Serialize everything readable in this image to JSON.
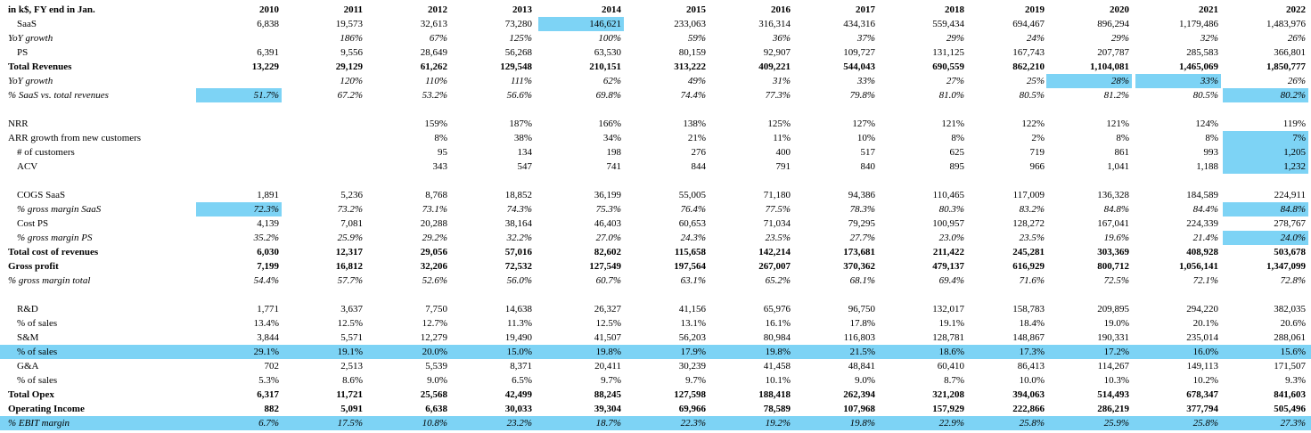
{
  "highlight_color": "#7dd3f5",
  "header": {
    "label": "in k$, FY end in Jan.",
    "years": [
      "2010",
      "2011",
      "2012",
      "2013",
      "2014",
      "2015",
      "2016",
      "2017",
      "2018",
      "2019",
      "2020",
      "2021",
      "2022"
    ]
  },
  "rows": [
    {
      "id": "saas",
      "label": "SaaS",
      "indent": 1,
      "style": "normal",
      "values": [
        "6,838",
        "19,573",
        "32,613",
        "73,280",
        "146,621",
        "233,063",
        "316,314",
        "434,316",
        "559,434",
        "694,467",
        "896,294",
        "1,179,486",
        "1,483,976"
      ],
      "highlight": [
        4
      ]
    },
    {
      "id": "saas-yoy",
      "label": "YoY growth",
      "indent": 0,
      "style": "italic",
      "values": [
        "",
        "186%",
        "67%",
        "125%",
        "100%",
        "59%",
        "36%",
        "37%",
        "29%",
        "24%",
        "29%",
        "32%",
        "26%"
      ]
    },
    {
      "id": "ps",
      "label": "PS",
      "indent": 1,
      "style": "normal",
      "values": [
        "6,391",
        "9,556",
        "28,649",
        "56,268",
        "63,530",
        "80,159",
        "92,907",
        "109,727",
        "131,125",
        "167,743",
        "207,787",
        "285,583",
        "366,801"
      ]
    },
    {
      "id": "total-revenues",
      "label": "Total Revenues",
      "indent": 0,
      "style": "bold",
      "values": [
        "13,229",
        "29,129",
        "61,262",
        "129,548",
        "210,151",
        "313,222",
        "409,221",
        "544,043",
        "690,559",
        "862,210",
        "1,104,081",
        "1,465,069",
        "1,850,777"
      ]
    },
    {
      "id": "total-yoy",
      "label": "YoY growth",
      "indent": 0,
      "style": "italic",
      "values": [
        "",
        "120%",
        "110%",
        "111%",
        "62%",
        "49%",
        "31%",
        "33%",
        "27%",
        "25%",
        "28%",
        "33%",
        "26%"
      ],
      "highlight": [
        10,
        11
      ]
    },
    {
      "id": "saas-share",
      "label": "% SaaS vs. total revenues",
      "indent": 0,
      "style": "italic",
      "values": [
        "51.7%",
        "67.2%",
        "53.2%",
        "56.6%",
        "69.8%",
        "74.4%",
        "77.3%",
        "79.8%",
        "81.0%",
        "80.5%",
        "81.2%",
        "80.5%",
        "80.2%"
      ],
      "highlight": [
        0,
        12
      ]
    },
    {
      "id": "gap-1",
      "label": "",
      "indent": 0,
      "style": "normal",
      "values": [
        "",
        "",
        "",
        "",
        "",
        "",
        "",
        "",
        "",
        "",
        "",
        "",
        ""
      ]
    },
    {
      "id": "nrr",
      "label": "NRR",
      "indent": 0,
      "style": "normal",
      "values": [
        "",
        "",
        "159%",
        "187%",
        "166%",
        "138%",
        "125%",
        "127%",
        "121%",
        "122%",
        "121%",
        "124%",
        "119%"
      ]
    },
    {
      "id": "arr-growth",
      "label": "ARR growth from new customers",
      "indent": 0,
      "style": "normal",
      "values": [
        "",
        "",
        "8%",
        "38%",
        "34%",
        "21%",
        "11%",
        "10%",
        "8%",
        "2%",
        "8%",
        "8%",
        "7%"
      ],
      "highlight": [
        12
      ]
    },
    {
      "id": "customers",
      "label": "# of customers",
      "indent": 1,
      "style": "normal",
      "values": [
        "",
        "",
        "95",
        "134",
        "198",
        "276",
        "400",
        "517",
        "625",
        "719",
        "861",
        "993",
        "1,205"
      ],
      "highlight": [
        12
      ]
    },
    {
      "id": "acv",
      "label": "ACV",
      "indent": 1,
      "style": "normal",
      "values": [
        "",
        "",
        "343",
        "547",
        "741",
        "844",
        "791",
        "840",
        "895",
        "966",
        "1,041",
        "1,188",
        "1,232"
      ],
      "highlight": [
        12
      ]
    },
    {
      "id": "gap-2",
      "label": "",
      "indent": 0,
      "style": "normal",
      "values": [
        "",
        "",
        "",
        "",
        "",
        "",
        "",
        "",
        "",
        "",
        "",
        "",
        ""
      ]
    },
    {
      "id": "cogs-saas",
      "label": "COGS SaaS",
      "indent": 2,
      "style": "normal",
      "values": [
        "1,891",
        "5,236",
        "8,768",
        "18,852",
        "36,199",
        "55,005",
        "71,180",
        "94,386",
        "110,465",
        "117,009",
        "136,328",
        "184,589",
        "224,911"
      ]
    },
    {
      "id": "gm-saas",
      "label": "% gross margin SaaS",
      "indent": 2,
      "style": "italic",
      "values": [
        "72.3%",
        "73.2%",
        "73.1%",
        "74.3%",
        "75.3%",
        "76.4%",
        "77.5%",
        "78.3%",
        "80.3%",
        "83.2%",
        "84.8%",
        "84.4%",
        "84.8%"
      ],
      "highlight": [
        0,
        12
      ]
    },
    {
      "id": "cost-ps",
      "label": "Cost PS",
      "indent": 2,
      "style": "normal",
      "values": [
        "4,139",
        "7,081",
        "20,288",
        "38,164",
        "46,403",
        "60,653",
        "71,034",
        "79,295",
        "100,957",
        "128,272",
        "167,041",
        "224,339",
        "278,767"
      ]
    },
    {
      "id": "gm-ps",
      "label": "% gross margin PS",
      "indent": 2,
      "style": "italic",
      "values": [
        "35.2%",
        "25.9%",
        "29.2%",
        "32.2%",
        "27.0%",
        "24.3%",
        "23.5%",
        "27.7%",
        "23.0%",
        "23.5%",
        "19.6%",
        "21.4%",
        "24.0%"
      ],
      "highlight": [
        12
      ]
    },
    {
      "id": "total-cost",
      "label": "Total cost of revenues",
      "indent": 0,
      "style": "bold",
      "values": [
        "6,030",
        "12,317",
        "29,056",
        "57,016",
        "82,602",
        "115,658",
        "142,214",
        "173,681",
        "211,422",
        "245,281",
        "303,369",
        "408,928",
        "503,678"
      ]
    },
    {
      "id": "gross-profit",
      "label": "Gross profit",
      "indent": 0,
      "style": "bold",
      "values": [
        "7,199",
        "16,812",
        "32,206",
        "72,532",
        "127,549",
        "197,564",
        "267,007",
        "370,362",
        "479,137",
        "616,929",
        "800,712",
        "1,056,141",
        "1,347,099"
      ]
    },
    {
      "id": "gm-total",
      "label": "% gross margin total",
      "indent": 0,
      "style": "italic",
      "values": [
        "54.4%",
        "57.7%",
        "52.6%",
        "56.0%",
        "60.7%",
        "63.1%",
        "65.2%",
        "68.1%",
        "69.4%",
        "71.6%",
        "72.5%",
        "72.1%",
        "72.8%"
      ]
    },
    {
      "id": "gap-3",
      "label": "",
      "indent": 0,
      "style": "normal",
      "values": [
        "",
        "",
        "",
        "",
        "",
        "",
        "",
        "",
        "",
        "",
        "",
        "",
        ""
      ]
    },
    {
      "id": "rnd",
      "label": "R&D",
      "indent": 2,
      "style": "normal",
      "values": [
        "1,771",
        "3,637",
        "7,750",
        "14,638",
        "26,327",
        "41,156",
        "65,976",
        "96,750",
        "132,017",
        "158,783",
        "209,895",
        "294,220",
        "382,035"
      ]
    },
    {
      "id": "rnd-pct",
      "label": "% of sales",
      "indent": 2,
      "style": "normal",
      "values": [
        "13.4%",
        "12.5%",
        "12.7%",
        "11.3%",
        "12.5%",
        "13.1%",
        "16.1%",
        "17.8%",
        "19.1%",
        "18.4%",
        "19.0%",
        "20.1%",
        "20.6%"
      ]
    },
    {
      "id": "snm",
      "label": "S&M",
      "indent": 2,
      "style": "normal",
      "values": [
        "3,844",
        "5,571",
        "12,279",
        "19,490",
        "41,507",
        "56,203",
        "80,984",
        "116,803",
        "128,781",
        "148,867",
        "190,331",
        "235,014",
        "288,061"
      ]
    },
    {
      "id": "snm-pct",
      "label": "% of sales",
      "indent": 2,
      "style": "normal",
      "band": true,
      "values": [
        "29.1%",
        "19.1%",
        "20.0%",
        "15.0%",
        "19.8%",
        "17.9%",
        "19.8%",
        "21.5%",
        "18.6%",
        "17.3%",
        "17.2%",
        "16.0%",
        "15.6%"
      ]
    },
    {
      "id": "gna",
      "label": "G&A",
      "indent": 2,
      "style": "normal",
      "values": [
        "702",
        "2,513",
        "5,539",
        "8,371",
        "20,411",
        "30,239",
        "41,458",
        "48,841",
        "60,410",
        "86,413",
        "114,267",
        "149,113",
        "171,507"
      ]
    },
    {
      "id": "gna-pct",
      "label": "% of sales",
      "indent": 2,
      "style": "normal",
      "values": [
        "5.3%",
        "8.6%",
        "9.0%",
        "6.5%",
        "9.7%",
        "9.7%",
        "10.1%",
        "9.0%",
        "8.7%",
        "10.0%",
        "10.3%",
        "10.2%",
        "9.3%"
      ]
    },
    {
      "id": "total-opex",
      "label": "Total Opex",
      "indent": 0,
      "style": "bold",
      "values": [
        "6,317",
        "11,721",
        "25,568",
        "42,499",
        "88,245",
        "127,598",
        "188,418",
        "262,394",
        "321,208",
        "394,063",
        "514,493",
        "678,347",
        "841,603"
      ]
    },
    {
      "id": "operating-income",
      "label": "Operating Income",
      "indent": 0,
      "style": "bold",
      "values": [
        "882",
        "5,091",
        "6,638",
        "30,033",
        "39,304",
        "69,966",
        "78,589",
        "107,968",
        "157,929",
        "222,866",
        "286,219",
        "377,794",
        "505,496"
      ]
    },
    {
      "id": "ebit-margin",
      "label": "% EBIT margin",
      "indent": 0,
      "style": "italic",
      "band": true,
      "values": [
        "6.7%",
        "17.5%",
        "10.8%",
        "23.2%",
        "18.7%",
        "22.3%",
        "19.2%",
        "19.8%",
        "22.9%",
        "25.8%",
        "25.9%",
        "25.8%",
        "27.3%"
      ]
    }
  ]
}
